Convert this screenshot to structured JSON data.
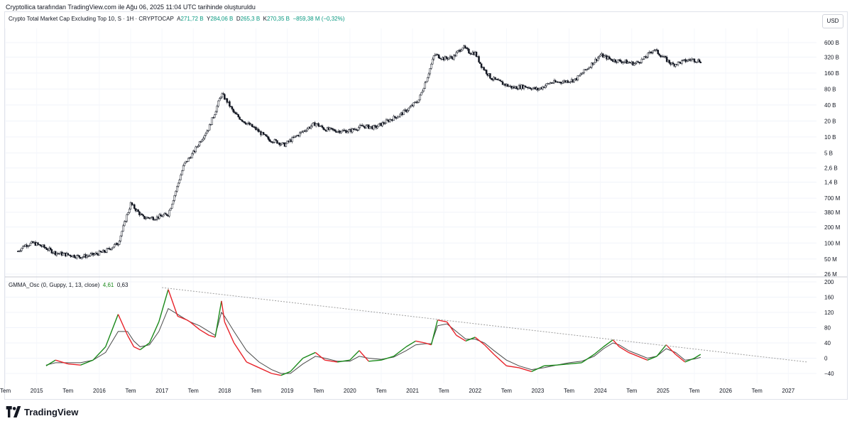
{
  "header": {
    "caption": "Cryptollica tarafından TradingView.com ile Ağu 06, 2025 11:04 UTC tarihinde oluşturuldu"
  },
  "main_legend": {
    "symbol": "Crypto Total Market Cap Excluding Top 10, S · 1H · CRYPTOCAP",
    "open_label": "A",
    "open": "271,72 B",
    "high_label": "Y",
    "high": "284,06 B",
    "low_label": "D",
    "low": "265,3 B",
    "close_label": "K",
    "close": "270,35 B",
    "change": "−859,38 M (−0,32%)"
  },
  "osc_legend": {
    "name": "GMMA_Osc (0, Guppy, 1, 13, close)",
    "value1": "4,61",
    "value2": "0,63"
  },
  "currency_button": "USD",
  "footer": {
    "brand": "TradingView"
  },
  "colors": {
    "up": "#089981",
    "down": "#f23645",
    "osc_up": "#1b8a1b",
    "osc_down": "#e8232a",
    "signal": "#4a4a4a",
    "trendline": "#9e9e9e"
  },
  "chart_data": [
    {
      "type": "line",
      "title": "Crypto Total Market Cap Excluding Top 10",
      "scale": "log",
      "y_tick_labels": [
        "600 B",
        "320 B",
        "160 B",
        "80 B",
        "40 B",
        "20 B",
        "10 B",
        "5 B",
        "2,6 B",
        "1,4 B",
        "700 M",
        "380 M",
        "200 M",
        "100 M",
        "50 M",
        "26 M"
      ],
      "x_tick_labels": [
        "Tem",
        "2015",
        "Tem",
        "2016",
        "Tem",
        "2017",
        "Tem",
        "2018",
        "Tem",
        "2019",
        "Tem",
        "2020",
        "Tem",
        "2021",
        "Tem",
        "2022",
        "Tem",
        "2023",
        "Tem",
        "2024",
        "Tem",
        "2025",
        "Tem",
        "2026",
        "Tem",
        "2027"
      ],
      "x": [
        2014.7,
        2014.8,
        2014.95,
        2015.1,
        2015.3,
        2015.5,
        2015.7,
        2015.9,
        2016.1,
        2016.3,
        2016.5,
        2016.7,
        2016.9,
        2017.1,
        2017.2,
        2017.35,
        2017.5,
        2017.6,
        2017.75,
        2017.85,
        2017.95,
        2018.05,
        2018.15,
        2018.3,
        2018.5,
        2018.7,
        2018.85,
        2018.95,
        2019.1,
        2019.3,
        2019.45,
        2019.6,
        2019.8,
        2020.0,
        2020.2,
        2020.4,
        2020.6,
        2020.8,
        2020.95,
        2021.1,
        2021.25,
        2021.35,
        2021.5,
        2021.65,
        2021.8,
        2021.9,
        2022.0,
        2022.1,
        2022.25,
        2022.45,
        2022.6,
        2022.8,
        2023.0,
        2023.2,
        2023.4,
        2023.6,
        2023.8,
        2024.0,
        2024.2,
        2024.4,
        2024.55,
        2024.7,
        2024.85,
        2025.0,
        2025.15,
        2025.3,
        2025.45,
        2025.6
      ],
      "values": [
        0.07,
        0.09,
        0.1,
        0.085,
        0.065,
        0.06,
        0.055,
        0.06,
        0.07,
        0.1,
        0.55,
        0.3,
        0.3,
        0.35,
        0.8,
        3.0,
        5.0,
        8.0,
        15.0,
        30.0,
        65.0,
        45.0,
        28.0,
        20.0,
        14.0,
        9.0,
        8.0,
        7.0,
        9.5,
        14.0,
        18.0,
        14.0,
        13.0,
        13.0,
        16.0,
        15.0,
        20.0,
        26.0,
        35.0,
        50.0,
        150.0,
        360.0,
        300.0,
        320.0,
        500.0,
        400.0,
        380.0,
        220.0,
        130.0,
        100.0,
        85.0,
        90.0,
        78.0,
        105.0,
        110.0,
        120.0,
        200.0,
        350.0,
        280.0,
        260.0,
        240.0,
        300.0,
        450.0,
        320.0,
        230.0,
        260.0,
        290.0,
        270.0
      ]
    },
    {
      "type": "line",
      "title": "GMMA_Osc (0, Guppy, 1, 13, close)",
      "y_tick_labels": [
        "200",
        "160",
        "120",
        "80",
        "40",
        "0",
        "−40"
      ],
      "ylim": [
        -40,
        200
      ],
      "x": [
        2015.15,
        2015.3,
        2015.5,
        2015.7,
        2015.9,
        2016.1,
        2016.3,
        2016.45,
        2016.55,
        2016.65,
        2016.8,
        2016.95,
        2017.1,
        2017.25,
        2017.4,
        2017.45,
        2017.6,
        2017.75,
        2017.85,
        2017.95,
        2018.0,
        2018.15,
        2018.35,
        2018.55,
        2018.75,
        2018.9,
        2019.05,
        2019.25,
        2019.45,
        2019.6,
        2019.8,
        2020.0,
        2020.15,
        2020.3,
        2020.5,
        2020.7,
        2020.9,
        2021.05,
        2021.2,
        2021.3,
        2021.4,
        2021.55,
        2021.7,
        2021.85,
        2022.0,
        2022.15,
        2022.3,
        2022.5,
        2022.7,
        2022.9,
        2023.1,
        2023.3,
        2023.5,
        2023.7,
        2023.9,
        2024.05,
        2024.2,
        2024.3,
        2024.45,
        2024.6,
        2024.75,
        2024.9,
        2025.05,
        2025.2,
        2025.35,
        2025.5,
        2025.6
      ],
      "osc": [
        -20,
        -5,
        -15,
        -18,
        -5,
        30,
        115,
        60,
        30,
        22,
        40,
        95,
        180,
        110,
        100,
        95,
        75,
        60,
        55,
        150,
        95,
        40,
        -10,
        -25,
        -40,
        -45,
        -35,
        0,
        15,
        -5,
        -10,
        -5,
        20,
        -8,
        -5,
        5,
        30,
        45,
        40,
        35,
        100,
        95,
        60,
        45,
        55,
        35,
        10,
        -20,
        -25,
        -35,
        -20,
        -18,
        -15,
        -12,
        10,
        30,
        48,
        30,
        15,
        5,
        -5,
        5,
        35,
        10,
        -10,
        0,
        10
      ],
      "signal": [
        -18,
        -12,
        -12,
        -12,
        -5,
        15,
        70,
        70,
        45,
        30,
        35,
        70,
        130,
        115,
        100,
        95,
        85,
        70,
        60,
        120,
        110,
        70,
        20,
        -10,
        -30,
        -40,
        -40,
        -15,
        5,
        0,
        -8,
        -8,
        5,
        0,
        -3,
        3,
        20,
        35,
        38,
        38,
        85,
        90,
        70,
        50,
        50,
        40,
        20,
        -5,
        -20,
        -30,
        -25,
        -18,
        -12,
        -8,
        5,
        25,
        40,
        35,
        20,
        10,
        0,
        5,
        25,
        15,
        -5,
        -2,
        2
      ],
      "trendline": {
        "x": [
          2017.0,
          2027.3
        ],
        "y": [
          185,
          -10
        ]
      }
    }
  ]
}
